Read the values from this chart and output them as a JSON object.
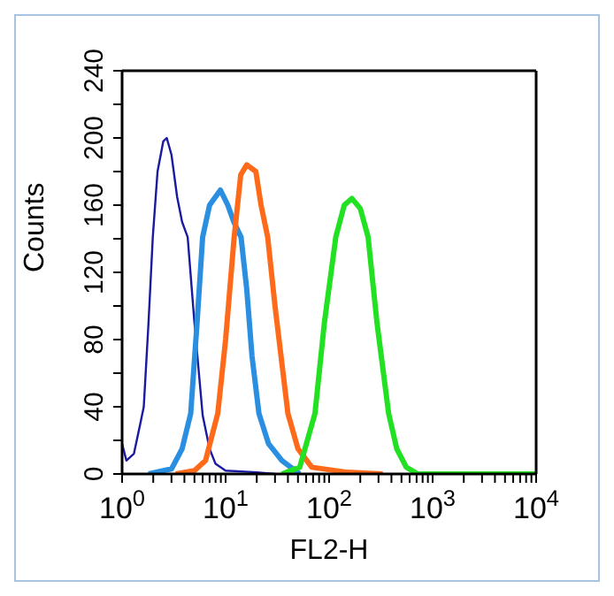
{
  "chart_data": {
    "type": "line",
    "xlabel": "FL2-H",
    "ylabel": "Counts",
    "log": "x",
    "xlim": [
      1,
      10000
    ],
    "ylim": [
      0,
      240
    ],
    "marker": "none",
    "xticks": [
      {
        "value": 1,
        "label": "10$^{0}$"
      },
      {
        "value": 2,
        "label": null
      },
      {
        "value": 3,
        "label": null
      },
      {
        "value": 4,
        "label": null
      },
      {
        "value": 5,
        "label": null
      },
      {
        "value": 6,
        "label": null
      },
      {
        "value": 7,
        "label": null
      },
      {
        "value": 8,
        "label": null
      },
      {
        "value": 9,
        "label": null
      },
      {
        "value": 10,
        "label": "10$^{1}$"
      },
      {
        "value": 20,
        "label": null
      },
      {
        "value": 30,
        "label": null
      },
      {
        "value": 40,
        "label": null
      },
      {
        "value": 50,
        "label": null
      },
      {
        "value": 60,
        "label": null
      },
      {
        "value": 70,
        "label": null
      },
      {
        "value": 80,
        "label": null
      },
      {
        "value": 90,
        "label": null
      },
      {
        "value": 100,
        "label": "10$^{2}$"
      },
      {
        "value": 200,
        "label": null
      },
      {
        "value": 300,
        "label": null
      },
      {
        "value": 400,
        "label": null
      },
      {
        "value": 500,
        "label": null
      },
      {
        "value": 600,
        "label": null
      },
      {
        "value": 700,
        "label": null
      },
      {
        "value": 800,
        "label": null
      },
      {
        "value": 900,
        "label": null
      },
      {
        "value": 1000,
        "label": "10$^{3}$"
      },
      {
        "value": 2000,
        "label": null
      },
      {
        "value": 3000,
        "label": null
      },
      {
        "value": 4000,
        "label": null
      },
      {
        "value": 5000,
        "label": null
      },
      {
        "value": 6000,
        "label": null
      },
      {
        "value": 7000,
        "label": null
      },
      {
        "value": 8000,
        "label": null
      },
      {
        "value": 9000,
        "label": null
      },
      {
        "value": 10000,
        "label": "10$^{4}$"
      }
    ],
    "yticks": [
      0,
      {
        "value": 20,
        "label": null
      },
      40,
      {
        "value": 60,
        "label": null
      },
      80,
      {
        "value": 100,
        "label": null
      },
      120,
      {
        "value": 140,
        "label": null
      },
      160,
      {
        "value": 180,
        "label": null
      },
      200,
      {
        "value": 220,
        "label": null
      },
      240
    ],
    "series": [
      {
        "color": "#1a1aa0",
        "x": [
          1.0,
          1.1,
          1.3,
          1.5,
          1.62,
          1.8,
          1.98,
          2.2,
          2.5,
          2.7,
          3.0,
          3.4,
          3.8,
          4.3,
          5.0,
          6.0,
          7.0,
          8.0,
          10,
          20,
          30
        ],
        "values": [
          18,
          8,
          12,
          30,
          40,
          90,
          141,
          180,
          198,
          200,
          190,
          165,
          150,
          141,
          90,
          35,
          15,
          6,
          2,
          1,
          0
        ]
      },
      {
        "color": "#2a8fe0",
        "x": [
          1.8,
          3,
          3.8,
          4.6,
          5.3,
          6.0,
          7,
          8.9,
          10.5,
          12,
          14.1,
          16,
          18,
          21,
          26,
          35,
          52
        ],
        "values": [
          0,
          3,
          15,
          36,
          90,
          141,
          160,
          169,
          160,
          150,
          141,
          110,
          70,
          36,
          18,
          8,
          0
        ]
      },
      {
        "color": "#ff6a1a",
        "x": [
          3.3,
          5,
          6.4,
          8.4,
          10,
          12.1,
          14,
          16,
          19.6,
          22,
          25.5,
          30,
          40,
          50,
          68,
          150,
          330
        ],
        "values": [
          0,
          2,
          8,
          36,
          80,
          141,
          178,
          184,
          180,
          160,
          141,
          100,
          36,
          15,
          4,
          1,
          0
        ]
      },
      {
        "color": "#22e022",
        "x": [
          35,
          52,
          73,
          90,
          116,
          140,
          166,
          200,
          238,
          290,
          376,
          450,
          557,
          720,
          10000
        ],
        "values": [
          0,
          4,
          36,
          90,
          141,
          160,
          164,
          158,
          141,
          90,
          36,
          15,
          4,
          0,
          0
        ]
      }
    ]
  }
}
